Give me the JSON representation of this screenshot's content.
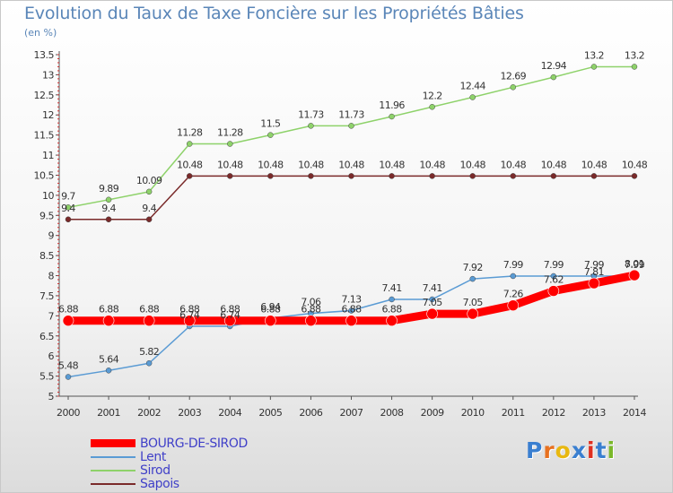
{
  "title": "Evolution du Taux de Taxe Foncière sur les Propriétés Bâties",
  "unit_label": "(en %)",
  "brand": {
    "name": "Proxiti",
    "letter_colors": [
      "#3a7fd0",
      "#e8711f",
      "#e8b810",
      "#3a7fd0",
      "#e03020",
      "#3a7fd0",
      "#7ab82a"
    ]
  },
  "chart_data": {
    "type": "line",
    "title": "Evolution du Taux de Taxe Foncière sur les Propriétés Bâties",
    "ylabel": "(en %)",
    "xlabel": "",
    "x": [
      "2000",
      "2001",
      "2002",
      "2003",
      "2004",
      "2005",
      "2006",
      "2007",
      "2008",
      "2009",
      "2010",
      "2011",
      "2012",
      "2013",
      "2014"
    ],
    "ylim": [
      5,
      13.5
    ],
    "yticks": [
      "5",
      "5.5",
      "6",
      "6.5",
      "7",
      "7.5",
      "8",
      "8.5",
      "9",
      "9.5",
      "10",
      "10.5",
      "11",
      "11.5",
      "12",
      "12.5",
      "13",
      "13.5"
    ],
    "grid": false,
    "legend_position": "bottom-left",
    "series": [
      {
        "name": "BOURG-DE-SIROD",
        "color": "#ff0000",
        "thick": true,
        "values": [
          6.88,
          6.88,
          6.88,
          6.88,
          6.88,
          6.88,
          6.88,
          6.88,
          6.88,
          7.05,
          7.05,
          7.26,
          7.62,
          7.81,
          8.01
        ],
        "labels": [
          "6.88",
          "6.88",
          "6.88",
          "6.88",
          "6.88",
          "6.88",
          "6.88",
          "6.88",
          "6.88",
          "7.05",
          "7.05",
          "7.26",
          "7.62",
          "7.81",
          "8.01"
        ]
      },
      {
        "name": "Lent",
        "color": "#5a9bd4",
        "values": [
          5.48,
          5.64,
          5.82,
          6.74,
          6.74,
          6.94,
          7.06,
          7.13,
          7.41,
          7.41,
          7.92,
          7.99,
          7.99,
          7.99,
          7.99
        ],
        "labels": [
          "5.48",
          "5.64",
          "5.82",
          "6.74",
          "6.74",
          "6.94",
          "7.06",
          "7.13",
          "7.41",
          "7.41",
          "7.92",
          "7.99",
          "7.99",
          "7.99",
          "7.99"
        ]
      },
      {
        "name": "Sirod",
        "color": "#8ed26a",
        "values": [
          9.7,
          9.89,
          10.09,
          11.28,
          11.28,
          11.5,
          11.73,
          11.73,
          11.96,
          12.2,
          12.44,
          12.69,
          12.94,
          13.2,
          13.2
        ],
        "labels": [
          "9.7",
          "9.89",
          "10.09",
          "11.28",
          "11.28",
          "11.5",
          "11.73",
          "11.73",
          "11.96",
          "12.2",
          "12.44",
          "12.69",
          "12.94",
          "13.2",
          "13.2"
        ]
      },
      {
        "name": "Sapois",
        "color": "#7a2a2a",
        "values": [
          9.4,
          9.4,
          9.4,
          10.48,
          10.48,
          10.48,
          10.48,
          10.48,
          10.48,
          10.48,
          10.48,
          10.48,
          10.48,
          10.48,
          10.48
        ],
        "labels": [
          "9.4",
          "9.4",
          "9.4",
          "10.48",
          "10.48",
          "10.48",
          "10.48",
          "10.48",
          "10.48",
          "10.48",
          "10.48",
          "10.48",
          "10.48",
          "10.48",
          "10.48"
        ]
      }
    ]
  }
}
